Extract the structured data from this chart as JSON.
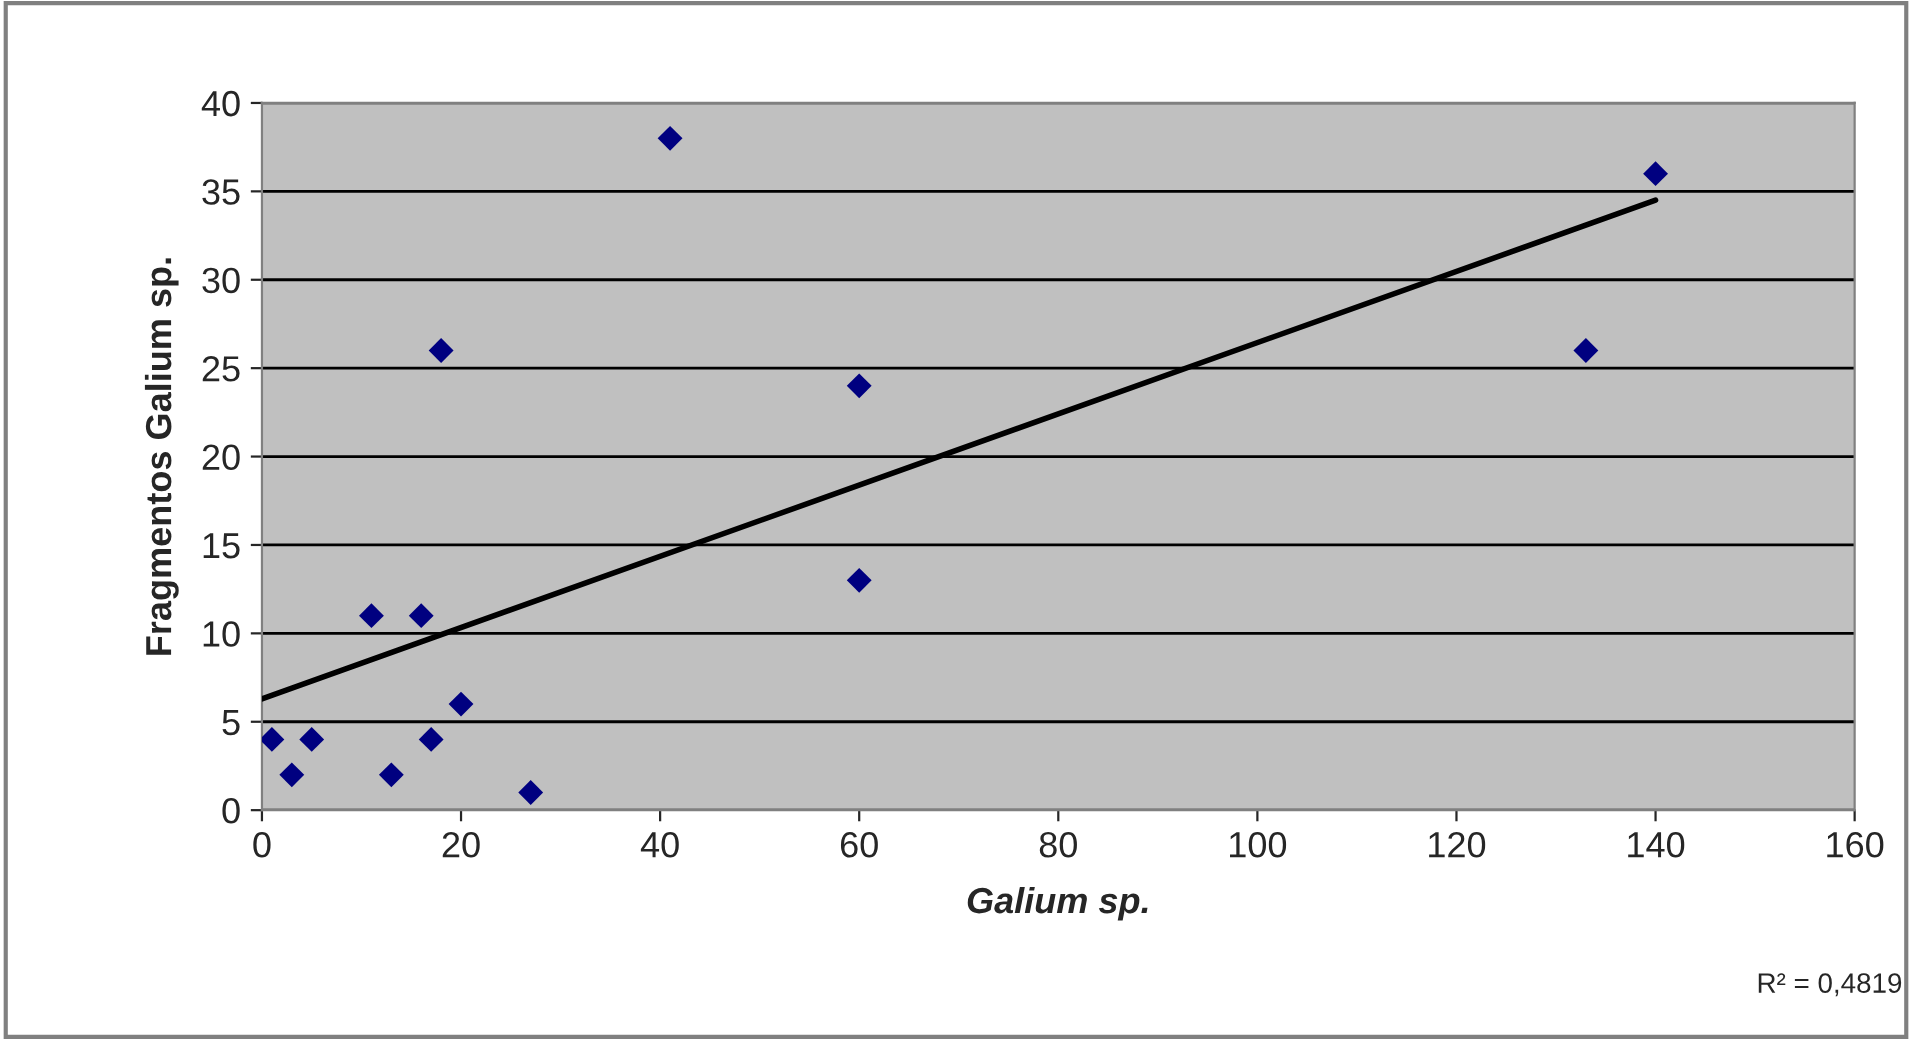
{
  "chart_data": {
    "type": "scatter",
    "xlabel": "Galium sp.",
    "ylabel": "Fragmentos Galium sp.",
    "xlim": [
      0,
      160
    ],
    "xticks": [
      0,
      20,
      40,
      60,
      80,
      100,
      120,
      140,
      160
    ],
    "ylim": [
      0,
      40
    ],
    "yticks": [
      0,
      5,
      10,
      15,
      20,
      25,
      30,
      35,
      40
    ],
    "grid": "y",
    "legend": false,
    "series": [
      {
        "marker": "diamond",
        "color": "#000080",
        "x": [
          1,
          3,
          5,
          11,
          13,
          16,
          17,
          18,
          20,
          27,
          41,
          60,
          60,
          133,
          140
        ],
        "values": [
          4,
          2,
          4,
          11,
          2,
          11,
          4,
          26,
          6,
          1,
          38,
          24,
          13,
          26,
          36
        ]
      },
      {
        "type": "line",
        "marker": "none",
        "color": "#000000",
        "x": [
          0,
          140
        ],
        "values": [
          6.3,
          34.5
        ]
      }
    ],
    "annotations": [
      "R² = 0,4819"
    ]
  }
}
